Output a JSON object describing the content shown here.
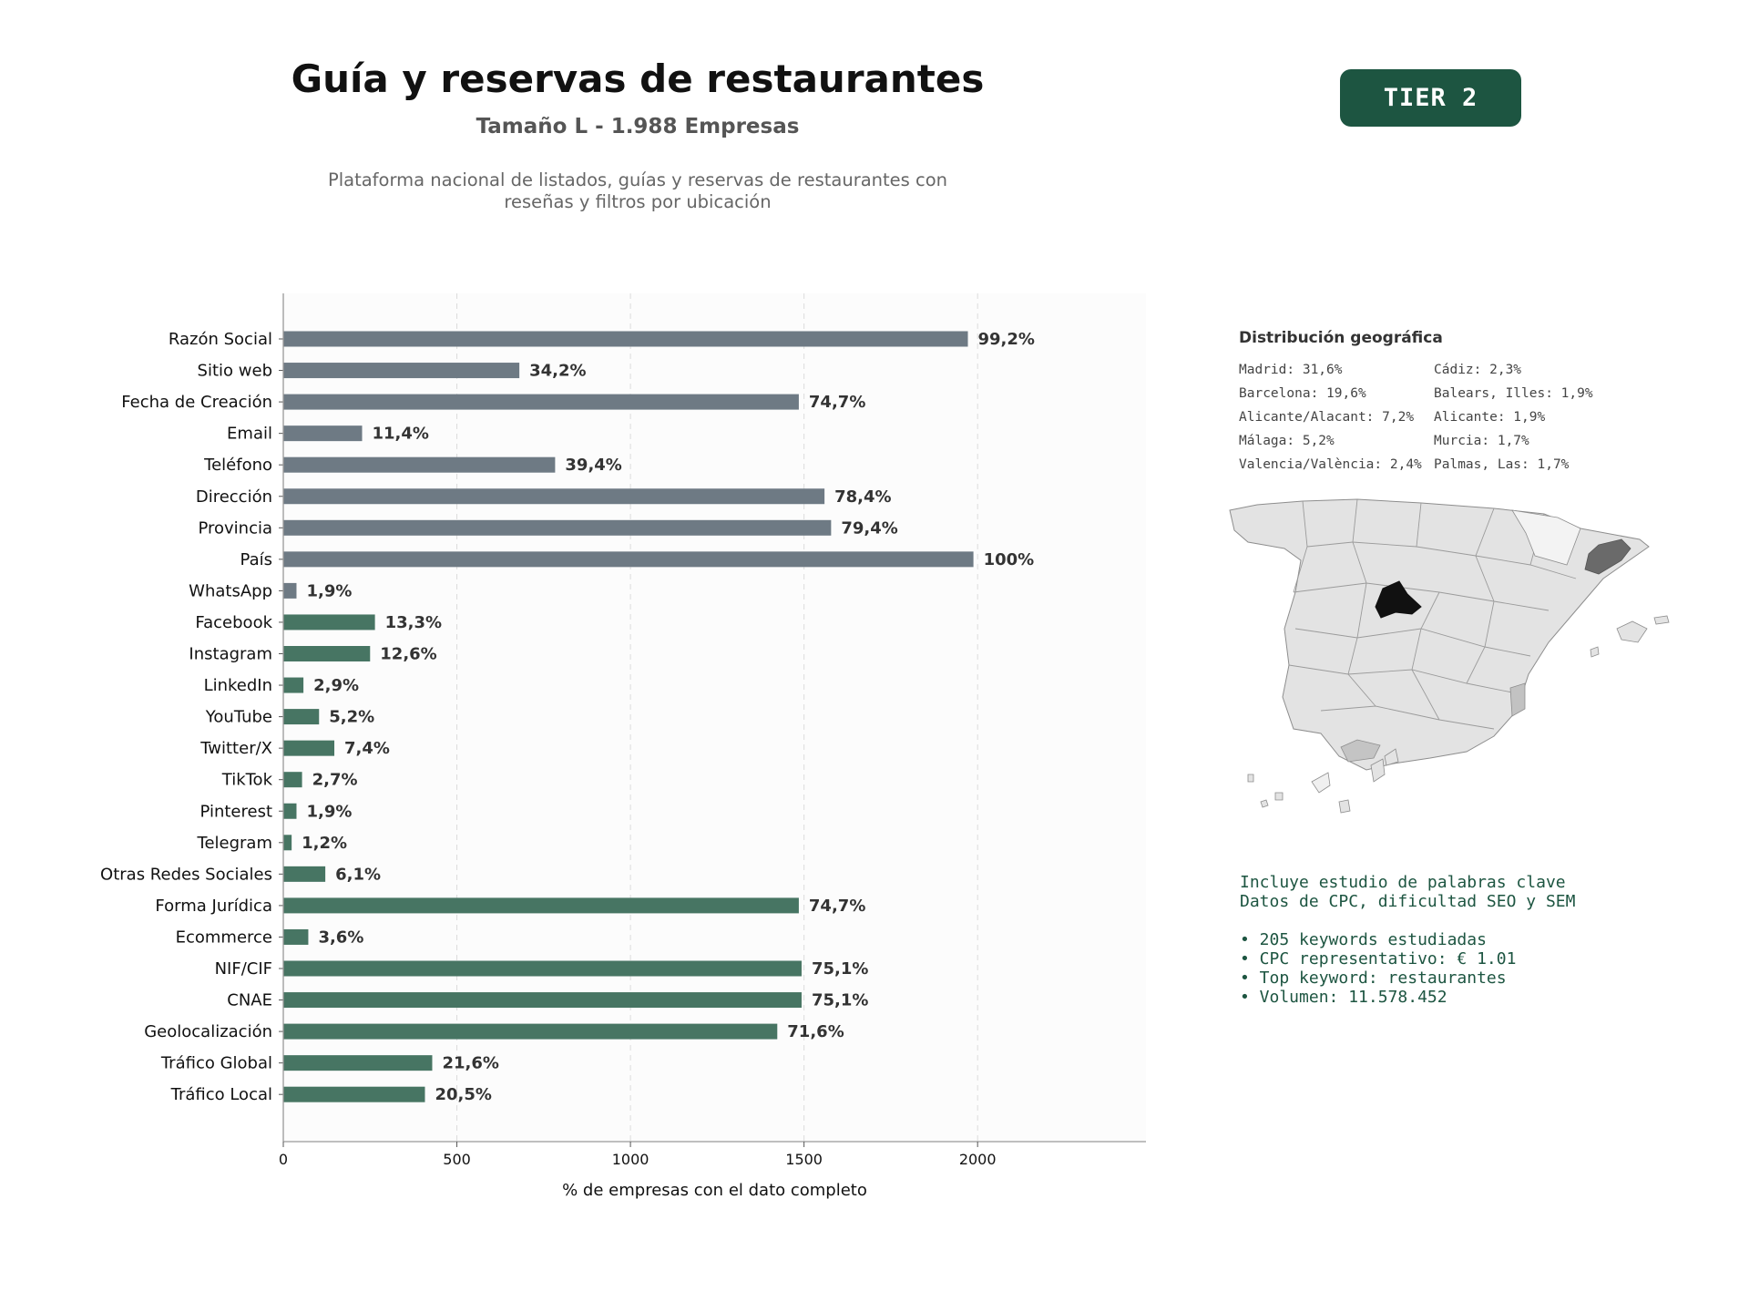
{
  "header": {
    "title": "Guía y reservas de restaurantes",
    "subtitle": "Tamaño L - 1.988 Empresas",
    "description_line1": "Plataforma nacional de listados, guías y reservas de restaurantes con",
    "description_line2": "reseñas y filtros por ubicación",
    "tier_label": "TIER 2"
  },
  "colors": {
    "contact_bar": "#6e7a84",
    "social_bar": "#477563",
    "brand_green": "#1d5541"
  },
  "chart_data": {
    "type": "bar",
    "orientation": "horizontal",
    "categories": [
      "Razón Social",
      "Sitio web",
      "Fecha de Creación",
      "Email",
      "Teléfono",
      "Dirección",
      "Provincia",
      "País",
      "WhatsApp",
      "Facebook",
      "Instagram",
      "LinkedIn",
      "YouTube",
      "Twitter/X",
      "TikTok",
      "Pinterest",
      "Telegram",
      "Otras Redes Sociales",
      "Forma Jurídica",
      "Ecommerce",
      "NIF/CIF",
      "CNAE",
      "Geolocalización",
      "Tráfico Global",
      "Tráfico Local"
    ],
    "values": [
      1972,
      680,
      1485,
      227,
      783,
      1559,
      1578,
      1988,
      38,
      264,
      250,
      58,
      103,
      147,
      54,
      38,
      24,
      121,
      1485,
      72,
      1493,
      1493,
      1423,
      429,
      408
    ],
    "labels": [
      "99,2%",
      "34,2%",
      "74,7%",
      "11,4%",
      "39,4%",
      "78,4%",
      "79,4%",
      "100%",
      "1,9%",
      "13,3%",
      "12,6%",
      "2,9%",
      "5,2%",
      "7,4%",
      "2,7%",
      "1,9%",
      "1,2%",
      "6,1%",
      "74,7%",
      "3,6%",
      "75,1%",
      "75,1%",
      "71,6%",
      "21,6%",
      "20,5%"
    ],
    "groups": [
      "contact",
      "contact",
      "contact",
      "contact",
      "contact",
      "contact",
      "contact",
      "contact",
      "contact",
      "social",
      "social",
      "social",
      "social",
      "social",
      "social",
      "social",
      "social",
      "social",
      "social",
      "social",
      "social",
      "social",
      "social",
      "social",
      "social"
    ],
    "xlabel": "% de empresas con el dato completo",
    "ylabel": "",
    "xlim": [
      0,
      2485
    ],
    "xticks": [
      0,
      500,
      1000,
      1500,
      2000
    ],
    "grid": "vertical dashed"
  },
  "geo": {
    "title": "Distribución geográfica",
    "items": [
      "Madrid: 31,6%",
      "Cádiz: 2,3%",
      "Barcelona: 19,6%",
      "Balears, Illes: 1,9%",
      "Alicante/Alacant: 7,2%",
      "Alicante: 1,9%",
      "Málaga: 5,2%",
      "Murcia: 1,7%",
      "Valencia/València: 2,4%",
      "Palmas, Las: 1,7%"
    ]
  },
  "keywords": {
    "line1": "Incluye estudio de palabras clave",
    "line2": "Datos de CPC, dificultad SEO y SEM",
    "bullets": [
      "• 205 keywords estudiadas",
      "• CPC representativo: € 1.01",
      "• Top keyword: restaurantes",
      "• Volumen: 11.578.452"
    ]
  }
}
